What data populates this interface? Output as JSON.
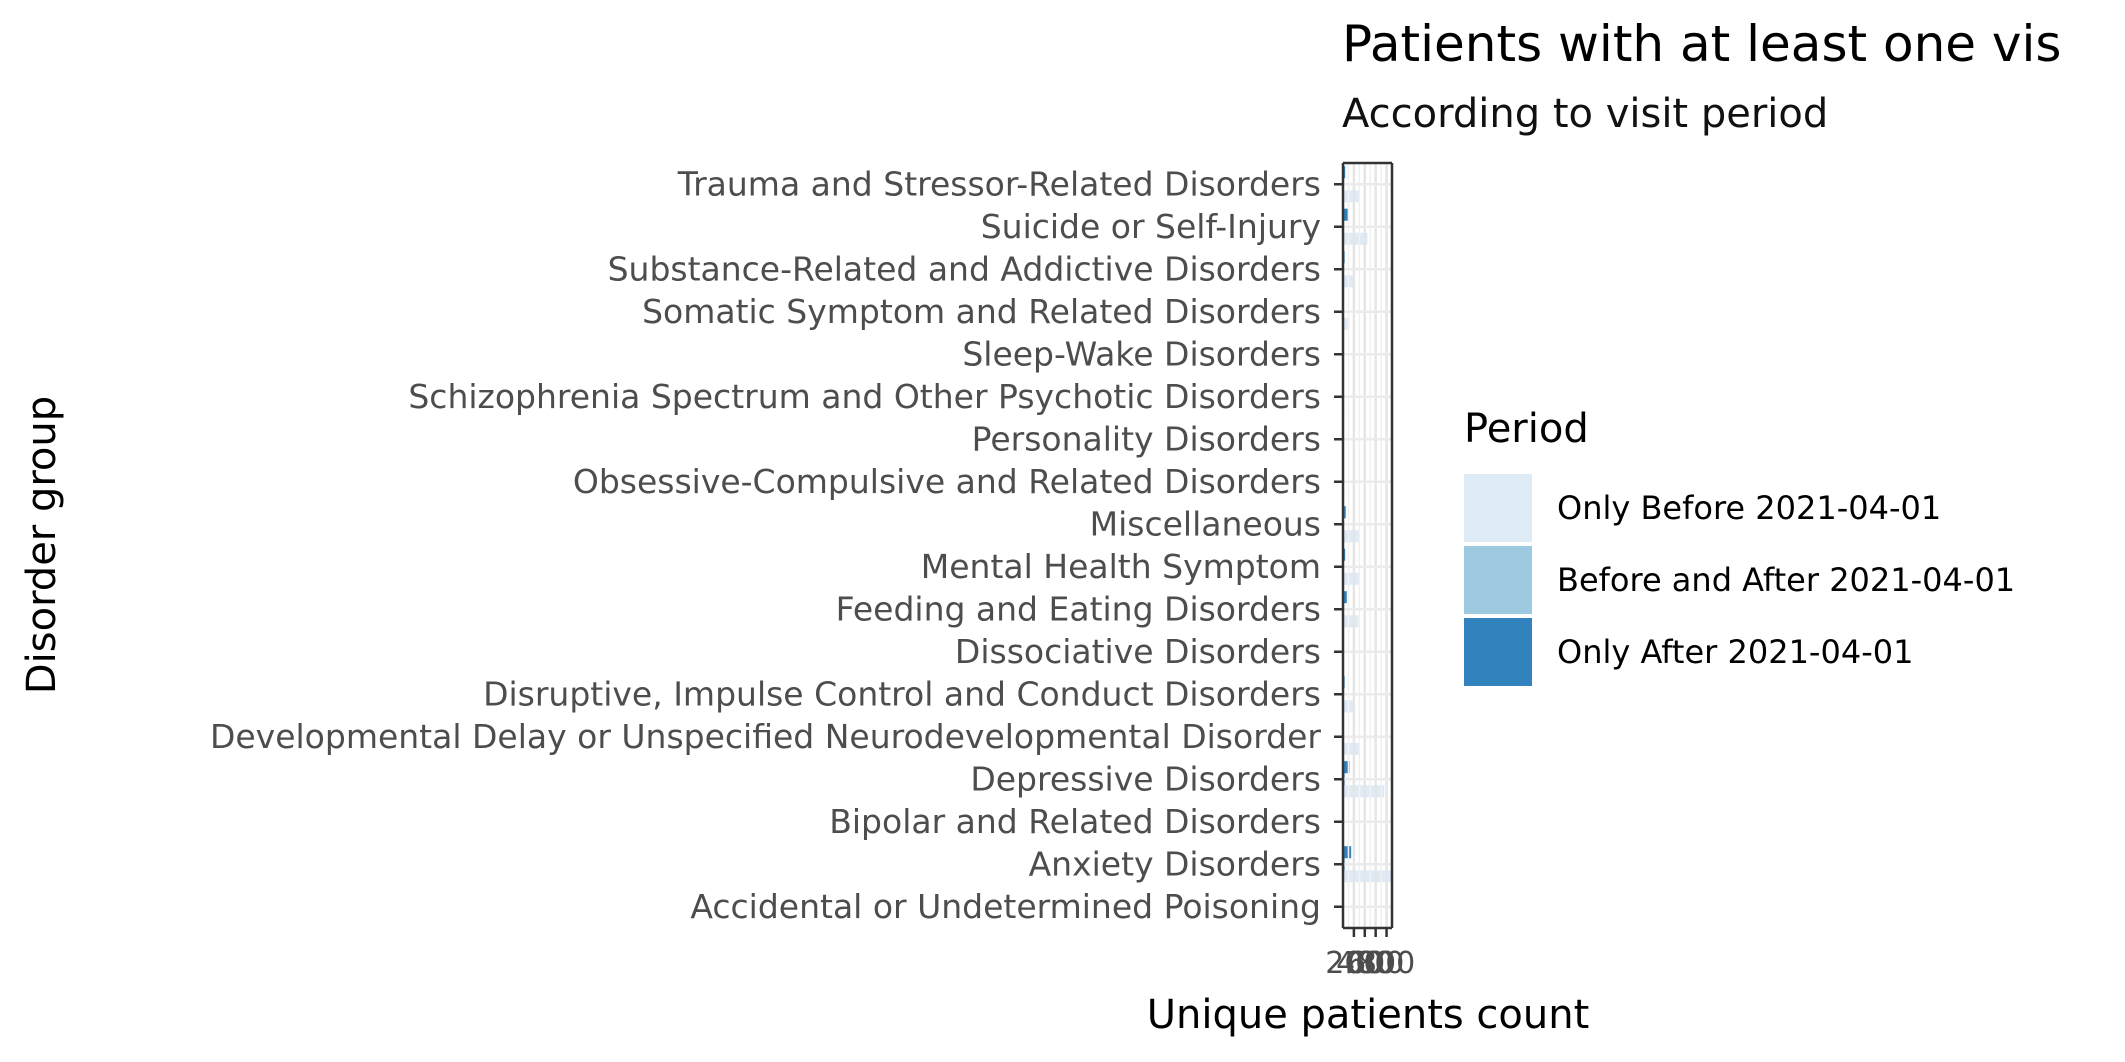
{
  "chart_data": {
    "type": "bar",
    "orientation": "horizontal",
    "title": "Patients with at least one vis",
    "subtitle": "According to visit period",
    "xlabel": "Unique patients count",
    "ylabel": "Disorder group",
    "x_ticks": [
      "200",
      "400",
      "600",
      "800"
    ],
    "xlim": [
      0,
      900
    ],
    "grid": true,
    "categories": [
      "Accidental or Undetermined Poisoning",
      "Anxiety Disorders",
      "Bipolar and Related Disorders",
      "Depressive Disorders",
      "Developmental Delay or Unspecified  Neurodevelopmental Disorder",
      "Disruptive, Impulse Control and Conduct Disorders",
      "Dissociative Disorders",
      "Feeding and Eating Disorders",
      "Mental Health Symptom",
      "Miscellaneous",
      "Obsessive-Compulsive and Related Disorders",
      "Personality Disorders",
      "Schizophrenia Spectrum and Other Psychotic Disorders",
      "Sleep-Wake Disorders",
      "Somatic Symptom and Related Disorders",
      "Substance-Related and Addictive Disorders",
      "Suicide or Self-Injury",
      "Trauma and Stressor-Related Disorders"
    ],
    "series": [
      {
        "name": "Only Before 2021-04-01",
        "color": "#deebf7",
        "values": [
          5,
          880,
          10,
          760,
          290,
          220,
          5,
          280,
          300,
          300,
          20,
          5,
          20,
          15,
          120,
          220,
          450,
          300
        ]
      },
      {
        "name": "Before and After 2021-04-01",
        "color": "#9ecae1",
        "values": [
          2,
          40,
          3,
          40,
          10,
          10,
          2,
          20,
          15,
          15,
          3,
          2,
          5,
          3,
          5,
          10,
          20,
          10
        ]
      },
      {
        "name": "Only After 2021-04-01",
        "color": "#3182bd",
        "values": [
          3,
          150,
          5,
          120,
          10,
          30,
          2,
          70,
          40,
          50,
          10,
          3,
          10,
          5,
          15,
          30,
          90,
          40
        ]
      }
    ],
    "legend_title": "Period",
    "legend_position": "right"
  }
}
